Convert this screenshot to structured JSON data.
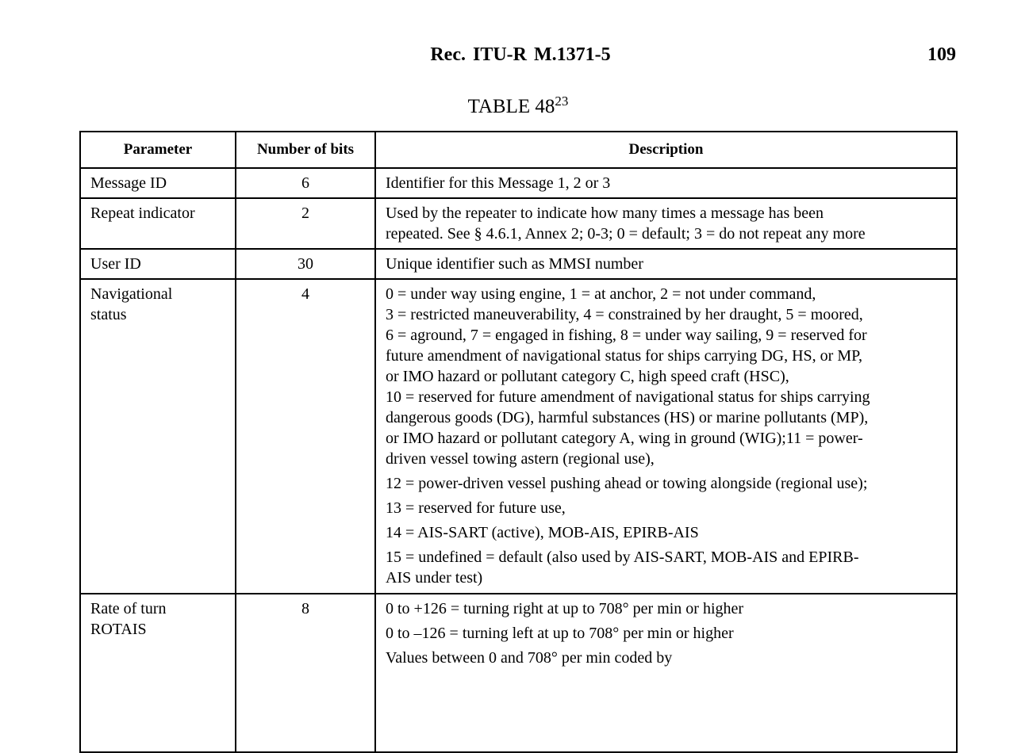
{
  "header": {
    "title": "Rec.  ITU-R  M.1371-5",
    "page_number": "109"
  },
  "table_title": {
    "text": "TABLE 48",
    "footnote": "23"
  },
  "table": {
    "columns": [
      "Parameter",
      "Number of bits",
      "Description"
    ],
    "rows": [
      {
        "parameter": [
          "Message ID"
        ],
        "bits": "6",
        "description": [
          [
            "Identifier for this Message 1, 2 or 3"
          ]
        ]
      },
      {
        "parameter": [
          "Repeat indicator"
        ],
        "bits": "2",
        "description": [
          [
            "Used by the repeater to indicate how many times a message has been",
            "repeated. See § 4.6.1, Annex 2; 0-3; 0 = default; 3 = do not repeat any more"
          ]
        ]
      },
      {
        "parameter": [
          "User ID"
        ],
        "bits": "30",
        "description": [
          [
            "Unique identifier such as MMSI number"
          ]
        ]
      },
      {
        "parameter": [
          "Navigational",
          "status"
        ],
        "bits": "4",
        "description": [
          [
            "0 = under way using engine, 1 = at anchor, 2 = not under command,",
            "3 = restricted maneuverability, 4 = constrained by her draught, 5 = moored,",
            "6 = aground, 7 = engaged in fishing, 8 = under way sailing, 9 = reserved for",
            "future amendment of navigational status for ships carrying DG, HS, or MP,",
            "or IMO hazard or pollutant category C, high speed craft (HSC),",
            "10 = reserved for future amendment of navigational status for ships carrying",
            "dangerous goods (DG), harmful substances (HS) or marine pollutants (MP),",
            "or IMO hazard or pollutant category A, wing in ground (WIG);11 = power-",
            "driven vessel towing astern (regional use),"
          ],
          [
            "12 = power-driven vessel pushing ahead or towing alongside (regional use);"
          ],
          [
            "13 = reserved for future use,"
          ],
          [
            "14 = AIS-SART (active), MOB-AIS, EPIRB-AIS"
          ],
          [
            "15 = undefined = default (also used by AIS-SART, MOB-AIS and EPIRB-",
            "AIS under test)"
          ]
        ]
      },
      {
        "parameter": [
          "Rate of turn",
          "ROTAIS"
        ],
        "bits": "8",
        "description": [
          [
            "0 to +126 = turning right at up to 708° per min or higher"
          ],
          [
            "0 to –126 = turning left at up to 708° per min or higher"
          ],
          [
            "Values between 0 and 708° per min coded by"
          ]
        ]
      }
    ]
  }
}
